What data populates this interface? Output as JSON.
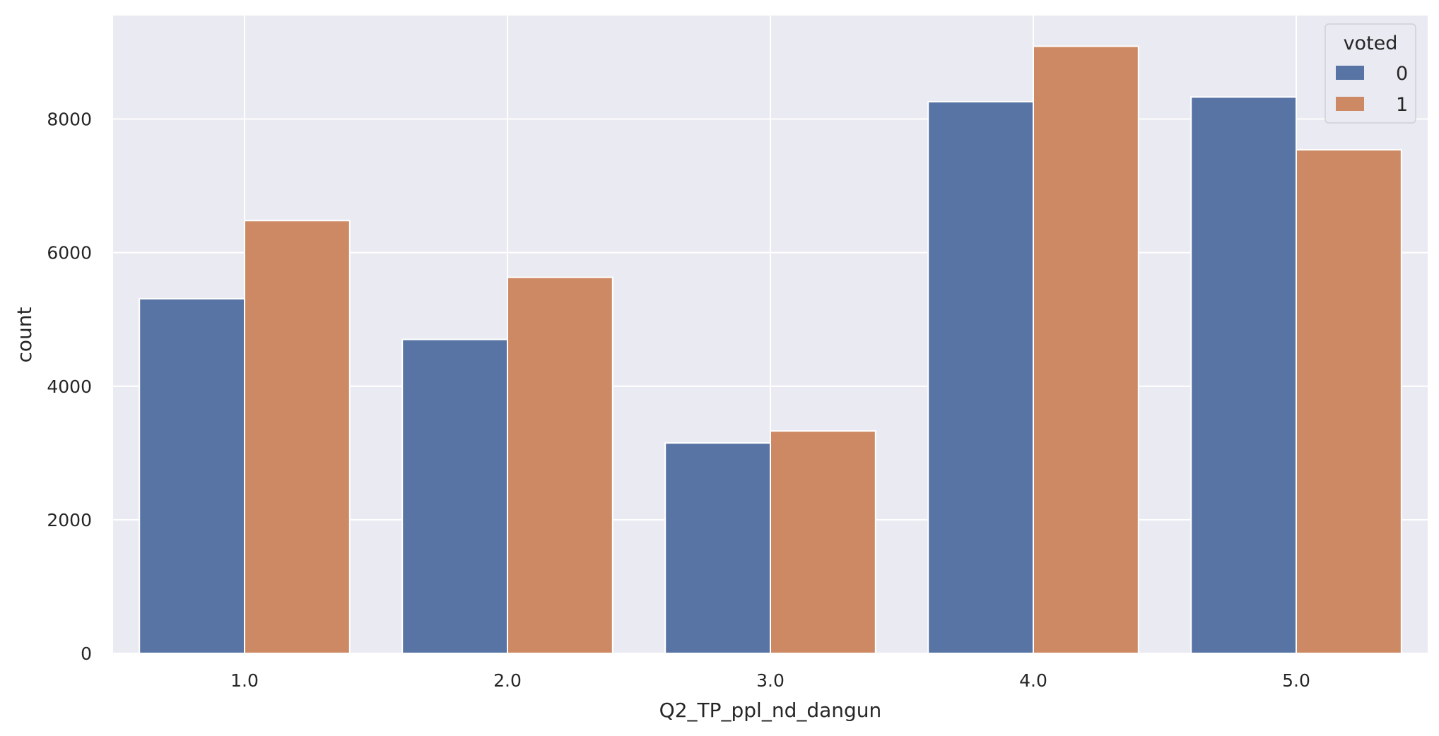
{
  "chart_data": {
    "type": "bar",
    "categories": [
      "1.0",
      "2.0",
      "3.0",
      "4.0",
      "5.0"
    ],
    "series": [
      {
        "name": "0",
        "values": [
          5310,
          4700,
          3150,
          8260,
          8330
        ],
        "color": "#5874a4"
      },
      {
        "name": "1",
        "values": [
          6480,
          5630,
          3330,
          9090,
          7540
        ],
        "color": "#cd8963"
      }
    ],
    "xlabel": "Q2_TP_ppl_nd_dangun",
    "ylabel": "count",
    "yticks": [
      "0",
      "2000",
      "4000",
      "6000",
      "8000"
    ],
    "ylim": [
      0,
      9550
    ],
    "legend": {
      "title": "voted",
      "position": "top-right"
    },
    "grid": true,
    "background": "#eaeaf2"
  }
}
